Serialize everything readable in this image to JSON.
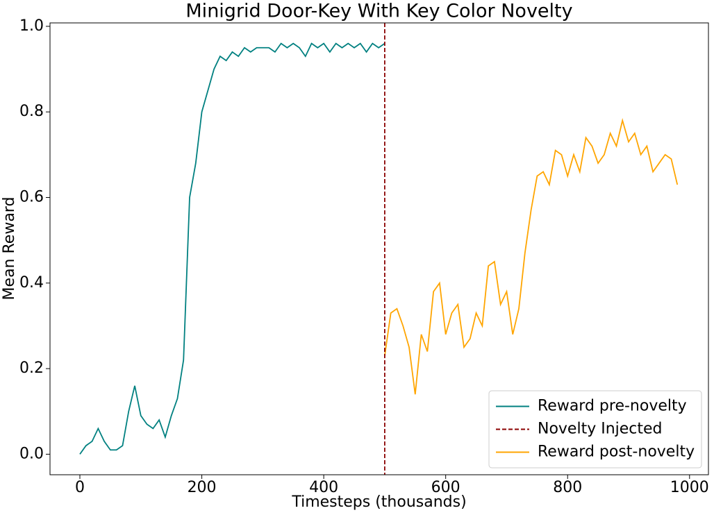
{
  "chart_data": {
    "type": "line",
    "title": "Minigrid Door-Key With Key Color Novelty",
    "xlabel": "Timesteps (thousands)",
    "ylabel": "Mean Reward",
    "xlim": [
      -49,
      1031
    ],
    "ylim": [
      -0.048,
      1.008
    ],
    "xticks": [
      0,
      200,
      400,
      600,
      800,
      1000
    ],
    "yticks": [
      {
        "value": 0,
        "label": "0.0"
      },
      0.2,
      0.4,
      0.6,
      0.8,
      {
        "value": 1,
        "label": "1.0"
      }
    ],
    "legend": "lower right",
    "series": [
      {
        "name": "Reward pre-novelty",
        "color": "#008080",
        "x": [
          0,
          10,
          20,
          30,
          40,
          50,
          60,
          70,
          80,
          90,
          100,
          110,
          120,
          130,
          140,
          150,
          160,
          170,
          180,
          190,
          200,
          210,
          220,
          230,
          240,
          250,
          260,
          270,
          280,
          290,
          300,
          310,
          320,
          330,
          340,
          350,
          360,
          370,
          380,
          390,
          400,
          410,
          420,
          430,
          440,
          450,
          460,
          470,
          480,
          490,
          500
        ],
        "values": [
          0.0,
          0.02,
          0.03,
          0.06,
          0.03,
          0.01,
          0.01,
          0.02,
          0.1,
          0.16,
          0.09,
          0.07,
          0.06,
          0.08,
          0.04,
          0.09,
          0.13,
          0.22,
          0.6,
          0.68,
          0.8,
          0.85,
          0.9,
          0.93,
          0.92,
          0.94,
          0.93,
          0.95,
          0.94,
          0.95,
          0.95,
          0.95,
          0.94,
          0.96,
          0.95,
          0.96,
          0.95,
          0.93,
          0.96,
          0.95,
          0.96,
          0.94,
          0.96,
          0.95,
          0.96,
          0.95,
          0.96,
          0.94,
          0.96,
          0.95,
          0.96
        ]
      },
      {
        "name": "Reward post-novelty",
        "color": "#ffa500",
        "x": [
          500,
          510,
          520,
          530,
          540,
          550,
          560,
          570,
          580,
          590,
          600,
          610,
          620,
          630,
          640,
          650,
          660,
          670,
          680,
          690,
          700,
          710,
          720,
          730,
          740,
          750,
          760,
          770,
          780,
          790,
          800,
          810,
          820,
          830,
          840,
          850,
          860,
          870,
          880,
          890,
          900,
          910,
          920,
          930,
          940,
          950,
          960,
          970,
          980
        ],
        "values": [
          0.23,
          0.33,
          0.34,
          0.3,
          0.25,
          0.14,
          0.28,
          0.24,
          0.38,
          0.4,
          0.28,
          0.33,
          0.35,
          0.25,
          0.27,
          0.33,
          0.3,
          0.44,
          0.45,
          0.35,
          0.38,
          0.28,
          0.34,
          0.47,
          0.57,
          0.65,
          0.66,
          0.63,
          0.71,
          0.7,
          0.65,
          0.7,
          0.66,
          0.74,
          0.72,
          0.68,
          0.7,
          0.75,
          0.72,
          0.78,
          0.73,
          0.75,
          0.7,
          0.72,
          0.66,
          0.68,
          0.7,
          0.69,
          0.63
        ]
      }
    ],
    "vlines": [
      {
        "name": "Novelty Injected",
        "x": 500,
        "color": "#8b0000"
      }
    ]
  }
}
